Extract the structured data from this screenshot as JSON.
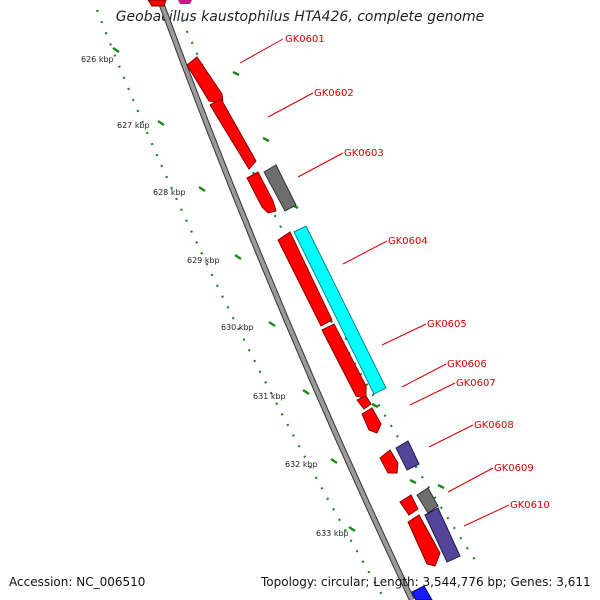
{
  "title": "Geobacillus kaustophilus HTA426, complete genome",
  "footer": {
    "accession": "Accession: NC_006510",
    "summary": "Topology: circular; Length: 3,544,776 bp; Genes: 3,611"
  },
  "colors": {
    "gene_red": "#ff0000",
    "gene_gray": "#6e6e6e",
    "gene_cyan": "#00ffff",
    "gene_purple": "#54449a",
    "backbone": "#8a8a8a",
    "tick_green": "#1a8a1a",
    "label_red": "#d40000"
  },
  "kbp_ticks": [
    "626 kbp",
    "627 kbp",
    "628 kbp",
    "629 kbp",
    "630 kbp",
    "631 kbp",
    "632 kbp",
    "633 kbp"
  ],
  "gene_labels": [
    "GK0601",
    "GK0602",
    "GK0603",
    "GK0604",
    "GK0605",
    "GK0606",
    "GK0607",
    "GK0608",
    "GK0609",
    "GK0610"
  ]
}
